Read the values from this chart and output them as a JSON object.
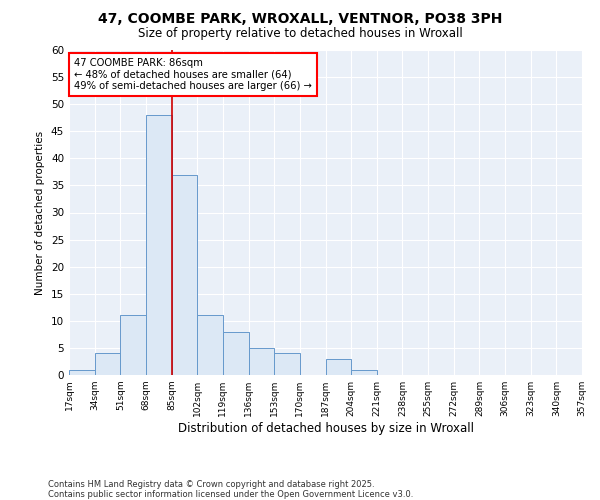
{
  "title1": "47, COOMBE PARK, WROXALL, VENTNOR, PO38 3PH",
  "title2": "Size of property relative to detached houses in Wroxall",
  "xlabel": "Distribution of detached houses by size in Wroxall",
  "ylabel": "Number of detached properties",
  "annotation_line1": "47 COOMBE PARK: 86sqm",
  "annotation_line2": "← 48% of detached houses are smaller (64)",
  "annotation_line3": "49% of semi-detached houses are larger (66) →",
  "footer": "Contains HM Land Registry data © Crown copyright and database right 2025.\nContains public sector information licensed under the Open Government Licence v3.0.",
  "bar_color": "#dce8f5",
  "bar_edge_color": "#6699cc",
  "vline_color": "#cc0000",
  "vline_x": 85,
  "bin_edges": [
    17,
    34,
    51,
    68,
    85,
    102,
    119,
    136,
    153,
    170,
    187,
    204,
    221,
    238,
    255,
    272,
    289,
    306,
    323,
    340,
    357
  ],
  "bar_heights": [
    1,
    4,
    11,
    48,
    37,
    11,
    8,
    5,
    4,
    0,
    3,
    1,
    0,
    0,
    0,
    0,
    0,
    0,
    0,
    0
  ],
  "ylim": [
    0,
    60
  ],
  "yticks": [
    0,
    5,
    10,
    15,
    20,
    25,
    30,
    35,
    40,
    45,
    50,
    55,
    60
  ],
  "background_color": "#ffffff",
  "plot_bg_color": "#eaf0f8",
  "grid_color": "#ffffff"
}
